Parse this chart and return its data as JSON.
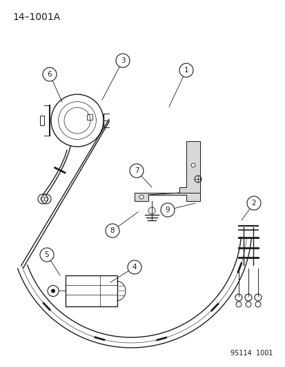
{
  "title": "14–1001A",
  "footer": "95114  1001",
  "bg_color": "#ffffff",
  "line_color": "#1a1a1a",
  "fig_w": 4.14,
  "fig_h": 5.33,
  "dpi": 100
}
